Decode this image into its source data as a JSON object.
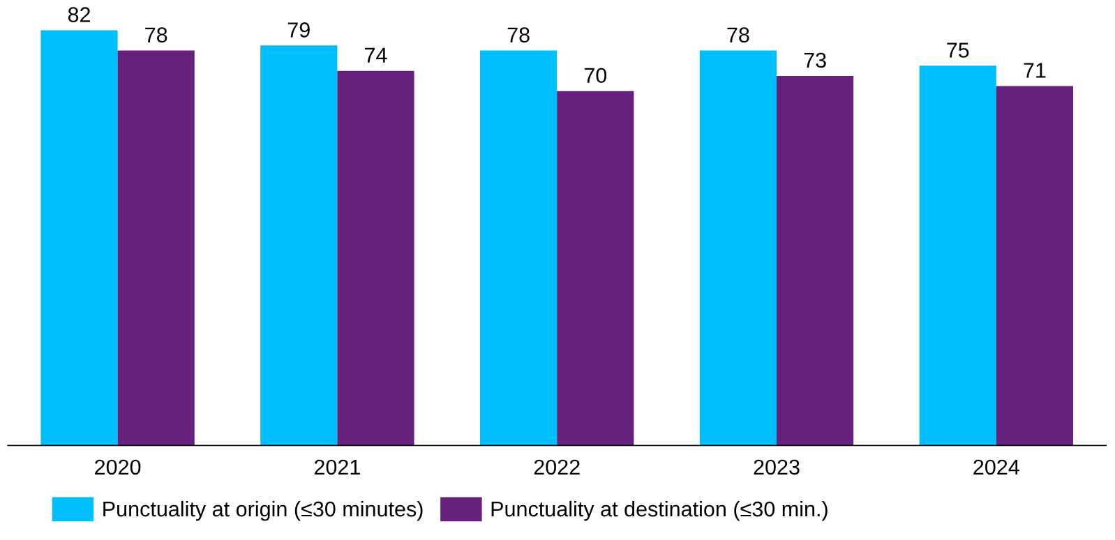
{
  "chart_data": {
    "type": "bar",
    "categories": [
      "2020",
      "2021",
      "2022",
      "2023",
      "2024"
    ],
    "series": [
      {
        "name": "Punctuality at origin (≤30 minutes)",
        "color": "#00bdfc",
        "values": [
          82,
          79,
          78,
          78,
          75
        ]
      },
      {
        "name": "Punctuality at destination (≤30 min.)",
        "color": "#66217d",
        "values": [
          78,
          74,
          70,
          73,
          71
        ]
      }
    ],
    "data_labels": true,
    "legend": "bottom left",
    "grid": false,
    "tick_labels": "x"
  }
}
